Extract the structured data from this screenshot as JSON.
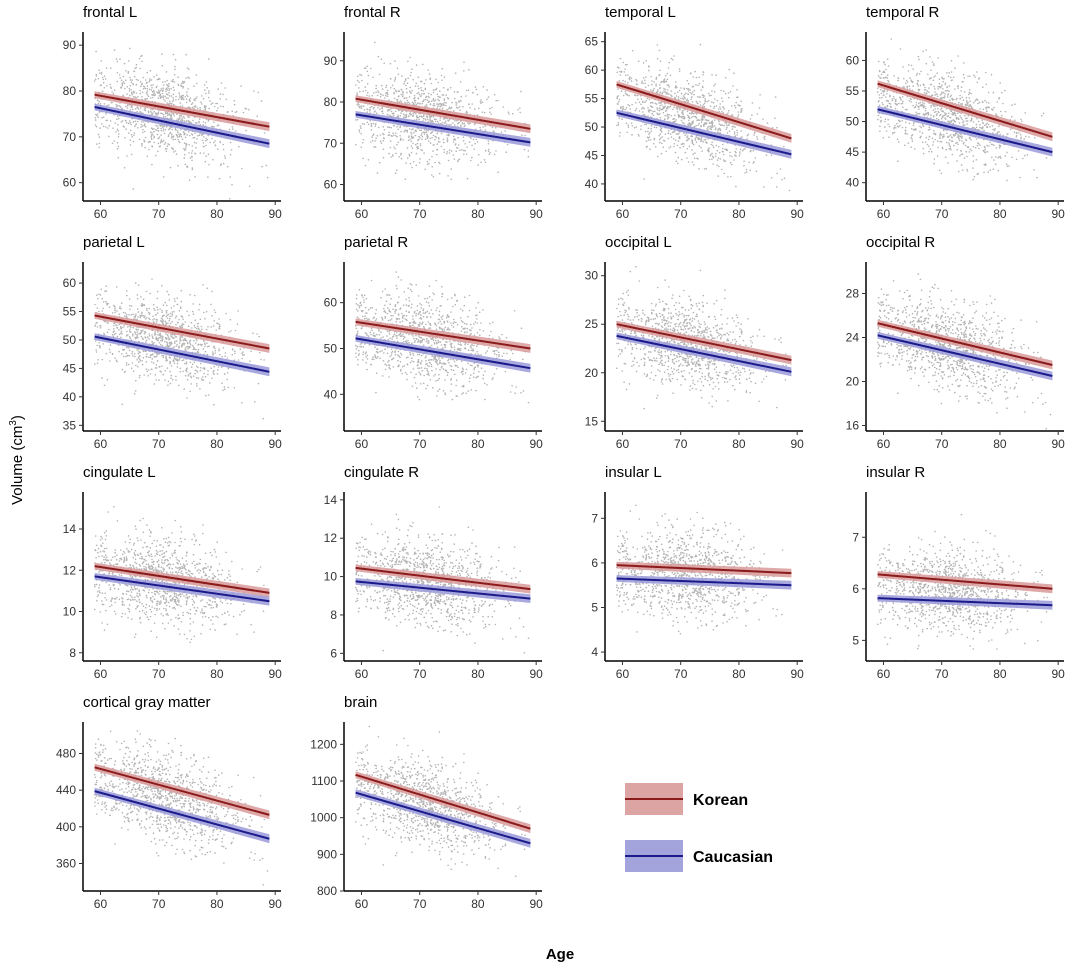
{
  "figure": {
    "x_title": "Age",
    "y_title": "Volume (cm",
    "y_title_sup": "3",
    "y_title_close": ")",
    "legend": [
      {
        "label": "Korean",
        "line_color": "#8b1a1a",
        "band_color": "#d99a9a"
      },
      {
        "label": "Caucasian",
        "line_color": "#1a1a8b",
        "band_color": "#9a9ad9"
      }
    ],
    "point_color": "#b3b3b3"
  },
  "chart_data": [
    {
      "type": "scatter",
      "title": "frontal L",
      "xlim": [
        57,
        91
      ],
      "ylim": [
        56,
        92
      ],
      "x_ticks": [
        60,
        70,
        80,
        90
      ],
      "y_ticks": [
        60,
        70,
        80,
        90
      ],
      "series": [
        {
          "name": "Korean",
          "x": [
            59,
            89
          ],
          "y": [
            79.2,
            72.2
          ]
        },
        {
          "name": "Caucasian",
          "x": [
            59,
            89
          ],
          "y": [
            76.5,
            68.5
          ]
        }
      ]
    },
    {
      "type": "scatter",
      "title": "frontal R",
      "xlim": [
        57,
        91
      ],
      "ylim": [
        56,
        96
      ],
      "x_ticks": [
        60,
        70,
        80,
        90
      ],
      "y_ticks": [
        60,
        70,
        80,
        90
      ],
      "series": [
        {
          "name": "Korean",
          "x": [
            59,
            89
          ],
          "y": [
            80.8,
            73.5
          ]
        },
        {
          "name": "Caucasian",
          "x": [
            59,
            89
          ],
          "y": [
            77.0,
            70.2
          ]
        }
      ]
    },
    {
      "type": "scatter",
      "title": "temporal L",
      "xlim": [
        57,
        91
      ],
      "ylim": [
        37,
        66
      ],
      "x_ticks": [
        60,
        70,
        80,
        90
      ],
      "y_ticks": [
        40,
        45,
        50,
        55,
        60,
        65
      ],
      "series": [
        {
          "name": "Korean",
          "x": [
            59,
            89
          ],
          "y": [
            57.5,
            48.0
          ]
        },
        {
          "name": "Caucasian",
          "x": [
            59,
            89
          ],
          "y": [
            52.5,
            45.2
          ]
        }
      ]
    },
    {
      "type": "scatter",
      "title": "temporal R",
      "xlim": [
        57,
        91
      ],
      "ylim": [
        37,
        64
      ],
      "x_ticks": [
        60,
        70,
        80,
        90
      ],
      "y_ticks": [
        40,
        45,
        50,
        55,
        60
      ],
      "series": [
        {
          "name": "Korean",
          "x": [
            59,
            89
          ],
          "y": [
            56.2,
            47.5
          ]
        },
        {
          "name": "Caucasian",
          "x": [
            59,
            89
          ],
          "y": [
            52.0,
            45.0
          ]
        }
      ]
    },
    {
      "type": "scatter",
      "title": "parietal L",
      "xlim": [
        57,
        91
      ],
      "ylim": [
        34,
        63
      ],
      "x_ticks": [
        60,
        70,
        80,
        90
      ],
      "y_ticks": [
        35,
        40,
        45,
        50,
        55,
        60
      ],
      "series": [
        {
          "name": "Korean",
          "x": [
            59,
            89
          ],
          "y": [
            54.3,
            48.5
          ]
        },
        {
          "name": "Caucasian",
          "x": [
            59,
            89
          ],
          "y": [
            50.6,
            44.4
          ]
        }
      ]
    },
    {
      "type": "scatter",
      "title": "parietal R",
      "xlim": [
        57,
        91
      ],
      "ylim": [
        32,
        68
      ],
      "x_ticks": [
        60,
        70,
        80,
        90
      ],
      "y_ticks": [
        40,
        50,
        60
      ],
      "series": [
        {
          "name": "Korean",
          "x": [
            59,
            89
          ],
          "y": [
            55.8,
            50.0
          ]
        },
        {
          "name": "Caucasian",
          "x": [
            59,
            89
          ],
          "y": [
            52.2,
            45.7
          ]
        }
      ]
    },
    {
      "type": "scatter",
      "title": "occipital L",
      "xlim": [
        57,
        91
      ],
      "ylim": [
        14,
        31
      ],
      "x_ticks": [
        60,
        70,
        80,
        90
      ],
      "y_ticks": [
        15,
        20,
        25,
        30
      ],
      "series": [
        {
          "name": "Korean",
          "x": [
            59,
            89
          ],
          "y": [
            25.0,
            21.3
          ]
        },
        {
          "name": "Caucasian",
          "x": [
            59,
            89
          ],
          "y": [
            23.8,
            20.1
          ]
        }
      ]
    },
    {
      "type": "scatter",
      "title": "occipital R",
      "xlim": [
        57,
        91
      ],
      "ylim": [
        15.5,
        30.5
      ],
      "x_ticks": [
        60,
        70,
        80,
        90
      ],
      "y_ticks": [
        16,
        20,
        24,
        28
      ],
      "series": [
        {
          "name": "Korean",
          "x": [
            59,
            89
          ],
          "y": [
            25.3,
            21.5
          ]
        },
        {
          "name": "Caucasian",
          "x": [
            59,
            89
          ],
          "y": [
            24.2,
            20.5
          ]
        }
      ]
    },
    {
      "type": "scatter",
      "title": "cingulate L",
      "xlim": [
        57,
        91
      ],
      "ylim": [
        7.6,
        15.6
      ],
      "x_ticks": [
        60,
        70,
        80,
        90
      ],
      "y_ticks": [
        8,
        10,
        12,
        14
      ],
      "series": [
        {
          "name": "Korean",
          "x": [
            59,
            89
          ],
          "y": [
            12.2,
            10.9
          ]
        },
        {
          "name": "Caucasian",
          "x": [
            59,
            89
          ],
          "y": [
            11.7,
            10.5
          ]
        }
      ]
    },
    {
      "type": "scatter",
      "title": "cingulate R",
      "xlim": [
        57,
        91
      ],
      "ylim": [
        5.6,
        14.2
      ],
      "x_ticks": [
        60,
        70,
        80,
        90
      ],
      "y_ticks": [
        6,
        8,
        10,
        12,
        14
      ],
      "series": [
        {
          "name": "Korean",
          "x": [
            59,
            89
          ],
          "y": [
            10.45,
            9.35
          ]
        },
        {
          "name": "Caucasian",
          "x": [
            59,
            89
          ],
          "y": [
            9.75,
            8.85
          ]
        }
      ]
    },
    {
      "type": "scatter",
      "title": "insular L",
      "xlim": [
        57,
        91
      ],
      "ylim": [
        3.8,
        7.5
      ],
      "x_ticks": [
        60,
        70,
        80,
        90
      ],
      "y_ticks": [
        4,
        5,
        6,
        7
      ],
      "series": [
        {
          "name": "Korean",
          "x": [
            59,
            89
          ],
          "y": [
            5.95,
            5.77
          ]
        },
        {
          "name": "Caucasian",
          "x": [
            59,
            89
          ],
          "y": [
            5.65,
            5.5
          ]
        }
      ]
    },
    {
      "type": "scatter",
      "title": "insular R",
      "xlim": [
        57,
        91
      ],
      "ylim": [
        4.6,
        7.8
      ],
      "x_ticks": [
        60,
        70,
        80,
        90
      ],
      "y_ticks": [
        5,
        6,
        7
      ],
      "series": [
        {
          "name": "Korean",
          "x": [
            59,
            89
          ],
          "y": [
            6.28,
            6.0
          ]
        },
        {
          "name": "Caucasian",
          "x": [
            59,
            89
          ],
          "y": [
            5.82,
            5.68
          ]
        }
      ]
    },
    {
      "type": "scatter",
      "title": "cortical gray matter",
      "xlim": [
        57,
        91
      ],
      "ylim": [
        330,
        510
      ],
      "x_ticks": [
        60,
        70,
        80,
        90
      ],
      "y_ticks": [
        360,
        400,
        440,
        480
      ],
      "series": [
        {
          "name": "Korean",
          "x": [
            59,
            89
          ],
          "y": [
            465,
            413
          ]
        },
        {
          "name": "Caucasian",
          "x": [
            59,
            89
          ],
          "y": [
            439,
            387
          ]
        }
      ]
    },
    {
      "type": "scatter",
      "title": "brain",
      "xlim": [
        57,
        91
      ],
      "ylim": [
        800,
        1250
      ],
      "x_ticks": [
        60,
        70,
        80,
        90
      ],
      "y_ticks": [
        800,
        900,
        1000,
        1100,
        1200
      ],
      "series": [
        {
          "name": "Korean",
          "x": [
            59,
            89
          ],
          "y": [
            1117,
            970
          ]
        },
        {
          "name": "Caucasian",
          "x": [
            59,
            89
          ],
          "y": [
            1068,
            930
          ]
        }
      ]
    }
  ]
}
